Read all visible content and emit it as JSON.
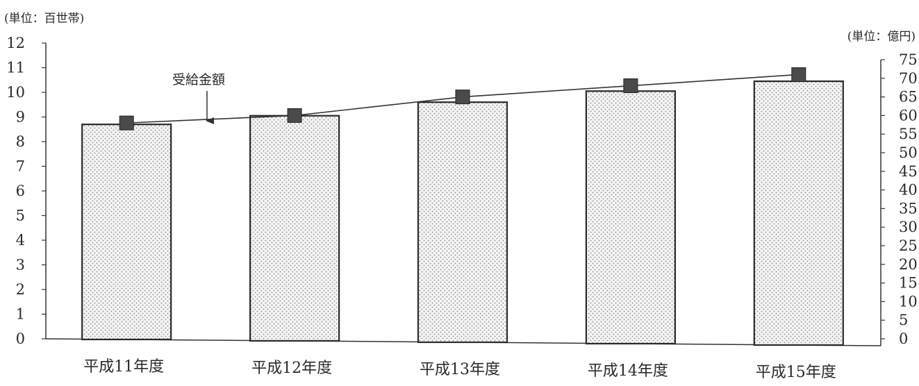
{
  "title_partial": "",
  "left_unit": "(単位：百世帯)",
  "right_unit": "(単位：億円)",
  "colors": {
    "axis": "#333333",
    "bar_fill": "#f4f4f4",
    "bar_dots": "#8a8a8a",
    "marker": "#4a4a4a",
    "line": "#333333"
  },
  "chart_data": {
    "type": "bar",
    "categories": [
      "平成11年度",
      "平成12年度",
      "平成13年度",
      "平成14年度",
      "平成15年度"
    ],
    "series": [
      {
        "values": [
          8.7,
          9.05,
          9.6,
          10.05,
          10.45
        ],
        "axis": "left"
      },
      {
        "name": "受給金額",
        "type": "line",
        "values": [
          58,
          60,
          65,
          68,
          71
        ],
        "axis": "right"
      }
    ],
    "ylim_left": [
      0,
      12
    ],
    "ylim_right": [
      0,
      75
    ],
    "yticks_left": [
      "0",
      "1",
      "2",
      "3",
      "4",
      "5",
      "6",
      "7",
      "8",
      "9",
      "10",
      "11",
      "12"
    ],
    "yticks_right": [
      "0",
      "5",
      "10",
      "15",
      "20",
      "25",
      "30",
      "35",
      "40",
      "45",
      "50",
      "55",
      "60",
      "65",
      "70",
      "75"
    ],
    "annotation": "受給金額",
    "grid": false
  }
}
